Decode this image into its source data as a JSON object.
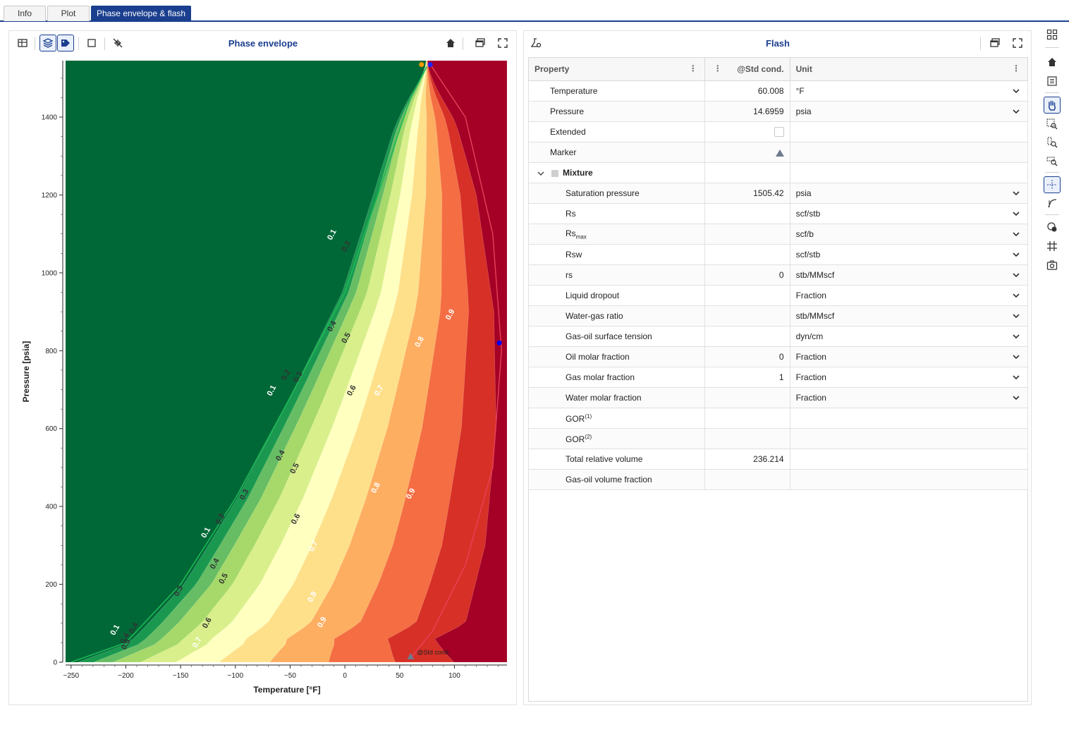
{
  "tabs": [
    {
      "label": "Info",
      "active": false
    },
    {
      "label": "Plot",
      "active": false
    },
    {
      "label": "Phase envelope & flash",
      "active": true
    }
  ],
  "phase_panel": {
    "title": "Phase envelope",
    "toolbar_icons": [
      "table-icon",
      "layers-icon",
      "tags-icon",
      "frame-icon",
      "no-cursor-icon",
      "home-icon",
      "window-icon",
      "fullscreen-icon"
    ]
  },
  "flash_panel": {
    "title": "Flash",
    "columns": [
      "Property",
      "@Std cond.",
      "Unit"
    ],
    "rows": [
      {
        "name": "Temperature",
        "value": "60.008",
        "unit": "°F",
        "level": 1
      },
      {
        "name": "Pressure",
        "value": "14.6959",
        "unit": "psia",
        "level": 1
      },
      {
        "name": "Extended",
        "value": "",
        "unit": "",
        "level": 1,
        "widget": "checkbox"
      },
      {
        "name": "Marker",
        "value": "",
        "unit": "",
        "level": 1,
        "widget": "triangle"
      },
      {
        "name": "Mixture",
        "value": "",
        "unit": "",
        "level": 0,
        "group": true
      },
      {
        "name": "Saturation pressure",
        "value": "1505.42",
        "unit": "psia",
        "level": 2
      },
      {
        "name": "Rs",
        "value": "",
        "unit": "scf/stb",
        "level": 2
      },
      {
        "name": "Rs",
        "sub": "max",
        "value": "",
        "unit": "scf/b",
        "level": 2
      },
      {
        "name": "Rsw",
        "value": "",
        "unit": "scf/stb",
        "level": 2
      },
      {
        "name": "rs",
        "value": "0",
        "unit": "stb/MMscf",
        "level": 2
      },
      {
        "name": "Liquid dropout",
        "value": "",
        "unit": "Fraction",
        "level": 2
      },
      {
        "name": "Water-gas ratio",
        "value": "",
        "unit": "stb/MMscf",
        "level": 2
      },
      {
        "name": "Gas-oil surface tension",
        "value": "",
        "unit": "dyn/cm",
        "level": 2
      },
      {
        "name": "Oil molar fraction",
        "value": "0",
        "unit": "Fraction",
        "level": 2
      },
      {
        "name": "Gas molar fraction",
        "value": "1",
        "unit": "Fraction",
        "level": 2
      },
      {
        "name": "Water molar fraction",
        "value": "",
        "unit": "Fraction",
        "level": 2
      },
      {
        "name": "GOR",
        "sup": "(1)",
        "value": "",
        "unit": "",
        "level": 2,
        "nounitselect": true
      },
      {
        "name": "GOR",
        "sup": "(2)",
        "value": "",
        "unit": "",
        "level": 2,
        "nounitselect": true
      },
      {
        "name": "Total relative volume",
        "value": "236.214",
        "unit": "",
        "level": 2,
        "nounitselect": true
      },
      {
        "name": "Gas-oil volume fraction",
        "value": "",
        "unit": "",
        "level": 2,
        "nounitselect": true
      }
    ]
  },
  "chart_data": {
    "type": "contour",
    "title": "",
    "xlabel": "Temperature [°F]",
    "ylabel": "Pressure [psia]",
    "xlim": [
      -255,
      148
    ],
    "ylim": [
      0,
      1545
    ],
    "xticks": [
      -250,
      -200,
      -150,
      -100,
      -50,
      0,
      50,
      100
    ],
    "yticks": [
      0,
      200,
      400,
      600,
      800,
      1000,
      1200,
      1400
    ],
    "contour_levels": [
      0.1,
      0.2,
      0.3,
      0.4,
      0.5,
      0.6,
      0.7,
      0.8,
      0.9
    ],
    "level_colors": [
      "#006837",
      "#1a9850",
      "#66bd63",
      "#a6d96a",
      "#d9ef8b",
      "#ffffbf",
      "#fee08b",
      "#fdae61",
      "#f46d43",
      "#d73027",
      "#a50026"
    ],
    "bubble_curve": {
      "color": "#1db954",
      "x": [
        -250,
        -200,
        -150,
        -100,
        -50,
        0,
        30,
        60,
        75
      ],
      "y": [
        0,
        50,
        200,
        420,
        680,
        950,
        1200,
        1450,
        1530
      ]
    },
    "dew_curve": {
      "color": "#e8405a",
      "x": [
        78,
        110,
        135,
        143,
        135,
        110,
        80,
        60
      ],
      "y": [
        1535,
        1400,
        1100,
        800,
        500,
        250,
        80,
        10
      ]
    },
    "contour_labels": [
      {
        "text": "0.1",
        "x": -10,
        "y": 1095
      },
      {
        "text": "0.3",
        "x": 3,
        "y": 1065
      },
      {
        "text": "0.4",
        "x": -10,
        "y": 860
      },
      {
        "text": "0.5",
        "x": 3,
        "y": 830
      },
      {
        "text": "0.9",
        "x": 98,
        "y": 890
      },
      {
        "text": "0.8",
        "x": 70,
        "y": 820
      },
      {
        "text": "0.1",
        "x": -65,
        "y": 695
      },
      {
        "text": "0.2",
        "x": -52,
        "y": 735
      },
      {
        "text": "0.3",
        "x": -41,
        "y": 730
      },
      {
        "text": "0.6",
        "x": 8,
        "y": 695
      },
      {
        "text": "0.7",
        "x": 33,
        "y": 695
      },
      {
        "text": "0.4",
        "x": -57,
        "y": 528
      },
      {
        "text": "0.5",
        "x": -44,
        "y": 495
      },
      {
        "text": "0.3",
        "x": -90,
        "y": 428
      },
      {
        "text": "0.8",
        "x": 30,
        "y": 445
      },
      {
        "text": "0.9",
        "x": 62,
        "y": 430
      },
      {
        "text": "0.2",
        "x": -112,
        "y": 365
      },
      {
        "text": "0.1",
        "x": -125,
        "y": 330
      },
      {
        "text": "0.6",
        "x": -43,
        "y": 365
      },
      {
        "text": "0.7",
        "x": -27,
        "y": 295
      },
      {
        "text": "0.4",
        "x": -117,
        "y": 250
      },
      {
        "text": "0.5",
        "x": -109,
        "y": 212
      },
      {
        "text": "0.3",
        "x": -150,
        "y": 180
      },
      {
        "text": "0.8",
        "x": -28,
        "y": 165
      },
      {
        "text": "0.6",
        "x": -124,
        "y": 98
      },
      {
        "text": "0.9",
        "x": -19,
        "y": 100
      },
      {
        "text": "0.1",
        "x": -208,
        "y": 80
      },
      {
        "text": "0.4",
        "x": -191,
        "y": 85
      },
      {
        "text": "0.4",
        "x": -199,
        "y": 58
      },
      {
        "text": "0.5",
        "x": -198,
        "y": 43
      },
      {
        "text": "0.7",
        "x": -133,
        "y": 48
      }
    ],
    "markers": [
      {
        "label": "@Std cond.",
        "x": 60,
        "y": 14.7,
        "shape": "triangle",
        "color": "#6d7b8d"
      },
      {
        "label": "",
        "x": 70,
        "y": 1535,
        "shape": "dot",
        "color": "#ff9900"
      },
      {
        "label": "",
        "x": 78,
        "y": 1535,
        "shape": "dot",
        "color": "#2222ff"
      },
      {
        "label": "",
        "x": 141,
        "y": 820,
        "shape": "dot",
        "color": "#0000ff"
      }
    ]
  },
  "right_rail_icons": [
    "layout-icon",
    "home-icon",
    "list-icon",
    "pan-hand-icon",
    "zoom-box-icon",
    "zoom-x-icon",
    "zoom-y-icon",
    "crosshair-icon",
    "pick-icon",
    "legend-icon",
    "grid-icon",
    "camera-icon"
  ]
}
